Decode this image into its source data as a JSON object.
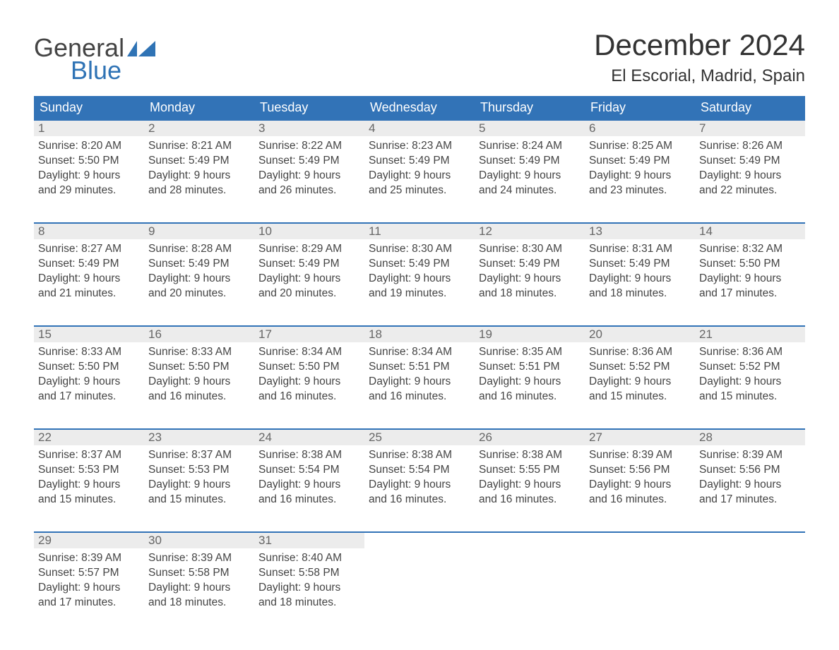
{
  "logo": {
    "word1": "General",
    "word2": "Blue",
    "brand_color": "#2f73b5"
  },
  "title": "December 2024",
  "location": "El Escorial, Madrid, Spain",
  "colors": {
    "header_bg": "#3273b7",
    "header_text": "#ffffff",
    "daynum_bg": "#ececec",
    "week_border": "#3273b7",
    "body_text": "#444444"
  },
  "weekdays": [
    "Sunday",
    "Monday",
    "Tuesday",
    "Wednesday",
    "Thursday",
    "Friday",
    "Saturday"
  ],
  "weeks": [
    [
      {
        "n": "1",
        "sunrise": "Sunrise: 8:20 AM",
        "sunset": "Sunset: 5:50 PM",
        "day1": "Daylight: 9 hours",
        "day2": "and 29 minutes."
      },
      {
        "n": "2",
        "sunrise": "Sunrise: 8:21 AM",
        "sunset": "Sunset: 5:49 PM",
        "day1": "Daylight: 9 hours",
        "day2": "and 28 minutes."
      },
      {
        "n": "3",
        "sunrise": "Sunrise: 8:22 AM",
        "sunset": "Sunset: 5:49 PM",
        "day1": "Daylight: 9 hours",
        "day2": "and 26 minutes."
      },
      {
        "n": "4",
        "sunrise": "Sunrise: 8:23 AM",
        "sunset": "Sunset: 5:49 PM",
        "day1": "Daylight: 9 hours",
        "day2": "and 25 minutes."
      },
      {
        "n": "5",
        "sunrise": "Sunrise: 8:24 AM",
        "sunset": "Sunset: 5:49 PM",
        "day1": "Daylight: 9 hours",
        "day2": "and 24 minutes."
      },
      {
        "n": "6",
        "sunrise": "Sunrise: 8:25 AM",
        "sunset": "Sunset: 5:49 PM",
        "day1": "Daylight: 9 hours",
        "day2": "and 23 minutes."
      },
      {
        "n": "7",
        "sunrise": "Sunrise: 8:26 AM",
        "sunset": "Sunset: 5:49 PM",
        "day1": "Daylight: 9 hours",
        "day2": "and 22 minutes."
      }
    ],
    [
      {
        "n": "8",
        "sunrise": "Sunrise: 8:27 AM",
        "sunset": "Sunset: 5:49 PM",
        "day1": "Daylight: 9 hours",
        "day2": "and 21 minutes."
      },
      {
        "n": "9",
        "sunrise": "Sunrise: 8:28 AM",
        "sunset": "Sunset: 5:49 PM",
        "day1": "Daylight: 9 hours",
        "day2": "and 20 minutes."
      },
      {
        "n": "10",
        "sunrise": "Sunrise: 8:29 AM",
        "sunset": "Sunset: 5:49 PM",
        "day1": "Daylight: 9 hours",
        "day2": "and 20 minutes."
      },
      {
        "n": "11",
        "sunrise": "Sunrise: 8:30 AM",
        "sunset": "Sunset: 5:49 PM",
        "day1": "Daylight: 9 hours",
        "day2": "and 19 minutes."
      },
      {
        "n": "12",
        "sunrise": "Sunrise: 8:30 AM",
        "sunset": "Sunset: 5:49 PM",
        "day1": "Daylight: 9 hours",
        "day2": "and 18 minutes."
      },
      {
        "n": "13",
        "sunrise": "Sunrise: 8:31 AM",
        "sunset": "Sunset: 5:49 PM",
        "day1": "Daylight: 9 hours",
        "day2": "and 18 minutes."
      },
      {
        "n": "14",
        "sunrise": "Sunrise: 8:32 AM",
        "sunset": "Sunset: 5:50 PM",
        "day1": "Daylight: 9 hours",
        "day2": "and 17 minutes."
      }
    ],
    [
      {
        "n": "15",
        "sunrise": "Sunrise: 8:33 AM",
        "sunset": "Sunset: 5:50 PM",
        "day1": "Daylight: 9 hours",
        "day2": "and 17 minutes."
      },
      {
        "n": "16",
        "sunrise": "Sunrise: 8:33 AM",
        "sunset": "Sunset: 5:50 PM",
        "day1": "Daylight: 9 hours",
        "day2": "and 16 minutes."
      },
      {
        "n": "17",
        "sunrise": "Sunrise: 8:34 AM",
        "sunset": "Sunset: 5:50 PM",
        "day1": "Daylight: 9 hours",
        "day2": "and 16 minutes."
      },
      {
        "n": "18",
        "sunrise": "Sunrise: 8:34 AM",
        "sunset": "Sunset: 5:51 PM",
        "day1": "Daylight: 9 hours",
        "day2": "and 16 minutes."
      },
      {
        "n": "19",
        "sunrise": "Sunrise: 8:35 AM",
        "sunset": "Sunset: 5:51 PM",
        "day1": "Daylight: 9 hours",
        "day2": "and 16 minutes."
      },
      {
        "n": "20",
        "sunrise": "Sunrise: 8:36 AM",
        "sunset": "Sunset: 5:52 PM",
        "day1": "Daylight: 9 hours",
        "day2": "and 15 minutes."
      },
      {
        "n": "21",
        "sunrise": "Sunrise: 8:36 AM",
        "sunset": "Sunset: 5:52 PM",
        "day1": "Daylight: 9 hours",
        "day2": "and 15 minutes."
      }
    ],
    [
      {
        "n": "22",
        "sunrise": "Sunrise: 8:37 AM",
        "sunset": "Sunset: 5:53 PM",
        "day1": "Daylight: 9 hours",
        "day2": "and 15 minutes."
      },
      {
        "n": "23",
        "sunrise": "Sunrise: 8:37 AM",
        "sunset": "Sunset: 5:53 PM",
        "day1": "Daylight: 9 hours",
        "day2": "and 15 minutes."
      },
      {
        "n": "24",
        "sunrise": "Sunrise: 8:38 AM",
        "sunset": "Sunset: 5:54 PM",
        "day1": "Daylight: 9 hours",
        "day2": "and 16 minutes."
      },
      {
        "n": "25",
        "sunrise": "Sunrise: 8:38 AM",
        "sunset": "Sunset: 5:54 PM",
        "day1": "Daylight: 9 hours",
        "day2": "and 16 minutes."
      },
      {
        "n": "26",
        "sunrise": "Sunrise: 8:38 AM",
        "sunset": "Sunset: 5:55 PM",
        "day1": "Daylight: 9 hours",
        "day2": "and 16 minutes."
      },
      {
        "n": "27",
        "sunrise": "Sunrise: 8:39 AM",
        "sunset": "Sunset: 5:56 PM",
        "day1": "Daylight: 9 hours",
        "day2": "and 16 minutes."
      },
      {
        "n": "28",
        "sunrise": "Sunrise: 8:39 AM",
        "sunset": "Sunset: 5:56 PM",
        "day1": "Daylight: 9 hours",
        "day2": "and 17 minutes."
      }
    ],
    [
      {
        "n": "29",
        "sunrise": "Sunrise: 8:39 AM",
        "sunset": "Sunset: 5:57 PM",
        "day1": "Daylight: 9 hours",
        "day2": "and 17 minutes."
      },
      {
        "n": "30",
        "sunrise": "Sunrise: 8:39 AM",
        "sunset": "Sunset: 5:58 PM",
        "day1": "Daylight: 9 hours",
        "day2": "and 18 minutes."
      },
      {
        "n": "31",
        "sunrise": "Sunrise: 8:40 AM",
        "sunset": "Sunset: 5:58 PM",
        "day1": "Daylight: 9 hours",
        "day2": "and 18 minutes."
      },
      {
        "empty": true
      },
      {
        "empty": true
      },
      {
        "empty": true
      },
      {
        "empty": true
      }
    ]
  ]
}
